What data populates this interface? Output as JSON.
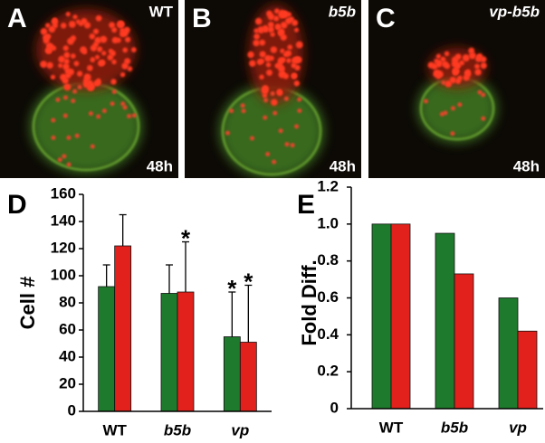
{
  "image_panels": [
    {
      "label": "A",
      "condition": "WT",
      "time": "48h"
    },
    {
      "label": "B",
      "condition": "b5b",
      "time": "48h"
    },
    {
      "label": "C",
      "condition": "vp-b5b",
      "time": "48h"
    }
  ],
  "chart_data": [
    {
      "type": "bar",
      "panel_label": "D",
      "ylabel": "Cell #",
      "categories": [
        "WT",
        "b5b",
        "vp"
      ],
      "series": [
        {
          "color": "#1e7a2c",
          "values": [
            92,
            87,
            55
          ],
          "errors": [
            16,
            21,
            33
          ],
          "markers": [
            null,
            null,
            "*"
          ]
        },
        {
          "color": "#e3211c",
          "values": [
            122,
            88,
            51
          ],
          "errors": [
            23,
            37,
            42
          ],
          "markers": [
            null,
            "*",
            "*"
          ]
        }
      ],
      "ylim": [
        0,
        160
      ],
      "yticks": [
        0,
        20,
        40,
        60,
        80,
        100,
        120,
        140,
        160
      ]
    },
    {
      "type": "bar",
      "panel_label": "E",
      "ylabel": "Fold Diff.",
      "categories": [
        "WT",
        "b5b",
        "vp"
      ],
      "series": [
        {
          "color": "#1e7a2c",
          "values": [
            1,
            0.95,
            0.6
          ]
        },
        {
          "color": "#e3211c",
          "values": [
            1,
            0.73,
            0.42
          ]
        }
      ],
      "ylim": [
        0,
        1.2
      ],
      "yticks": [
        0,
        0.2,
        0.4,
        0.6,
        0.8,
        {
          "value": 1,
          "label": "1.0"
        },
        1.2
      ]
    }
  ]
}
